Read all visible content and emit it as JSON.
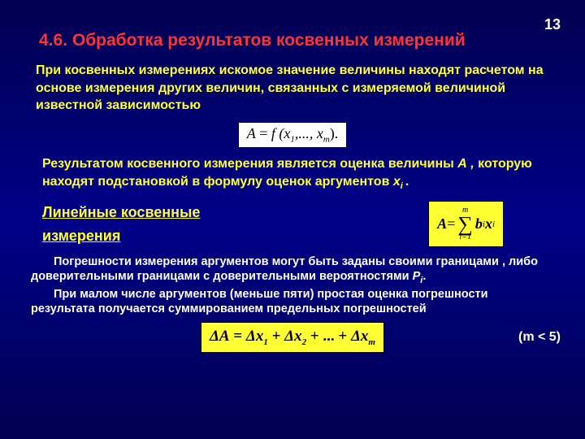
{
  "page_number": "13",
  "heading": "4.6. Обработка результатов косвенных измерений",
  "para1": "При косвенных измерениях искомое значение величины находят расчетом на основе измерения других величин, связанных с измеряемой величиной известной зависимостью",
  "formula1": {
    "lhs": "A",
    "eq": " = ",
    "rhs_prefix": "f (x",
    "rhs_sub1": "1",
    "rhs_mid": ",..., x",
    "rhs_subm": "m",
    "rhs_suffix": ").",
    "bg": "#ffffff"
  },
  "para2_a": "Результатом косвенного измерения является оценка величины ",
  "para2_em": "А ,",
  "para2_b": " которую находят подстановкой в формулу оценок аргументов ",
  "para2_xi": "х",
  "para2_i": "i ",
  "para2_c": ".",
  "linear_heading_l1": "Линейные косвенные",
  "linear_heading_l2": "измерения",
  "formula2": {
    "lhs": "A",
    "eq": " = ",
    "sum_top": "m",
    "sum_bot": "i=1",
    "term_b": "b",
    "term_bi": "i",
    "spacer": " ",
    "term_x": "x",
    "term_xi": "i",
    "bg": "#ffff33"
  },
  "para3_a": "Погрешности измерения аргументов могут быть заданы своими границами , либо доверительными границами  с доверительными вероятностями ",
  "para3_em_P": "Р",
  "para3_em_i": "i",
  "para3_a_end": ".",
  "para3_b": "При малом числе аргументов (меньше пяти) простая оценка погрешности результата  получается суммированием предельных погрешностей",
  "formula3": {
    "lhs": "ΔA",
    "eq": " = ",
    "t1a": "Δx",
    "t1b": "1",
    "plus": " + ",
    "t2a": "Δx",
    "t2b": "2",
    "dots": " + ... + ",
    "tma": "Δx",
    "tmb": "m",
    "bg": "#ffff33"
  },
  "m_note": "(m < 5)",
  "colors": {
    "bg_top": "#000050",
    "bg_mid": "#000088",
    "red": "#ff3333",
    "yellow": "#ffff33",
    "white": "#ffffff"
  }
}
